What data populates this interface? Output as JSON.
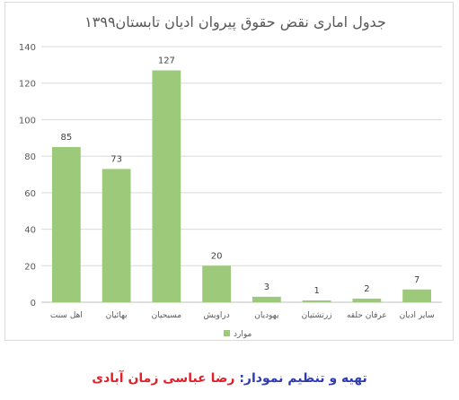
{
  "chart_data": {
    "type": "bar",
    "title": "جدول اماری نقض حقوق پیروان ادیان تابستان۱۳۹۹",
    "categories": [
      "اهل سنت",
      "بهائیان",
      "مسیحیان",
      "دراویش",
      "یهودیان",
      "زرتشتیان",
      "عرفان حلقه",
      "سایر ادیان"
    ],
    "series": [
      {
        "name": "موارد",
        "values": [
          85,
          73,
          127,
          20,
          3,
          1,
          2,
          7
        ]
      }
    ],
    "ylim": [
      0,
      140
    ],
    "yticks": [
      0,
      20,
      40,
      60,
      80,
      100,
      120,
      140
    ],
    "grid": true,
    "legend": "bottom",
    "bar_color": "#9dc97a",
    "grid_color": "#d9d9d9",
    "text_color": "#595959"
  },
  "credit": {
    "label": "تهیه و تنظیم نمودار:",
    "name": "رضا عباسی زمان آبادی"
  }
}
